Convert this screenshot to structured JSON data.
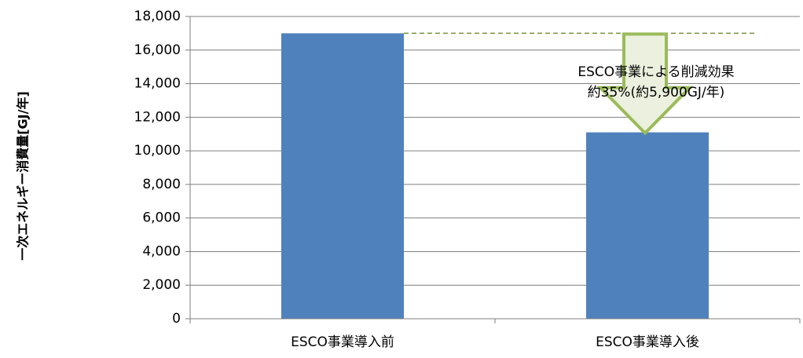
{
  "chart_data": {
    "type": "bar",
    "categories": [
      "ESCO事業導入前",
      "ESCO事業導入後"
    ],
    "values": [
      17000,
      11100
    ],
    "ylabel": "一次エネルギー消費量[GJ/年]",
    "xlabel": "",
    "ylim": [
      0,
      18000
    ],
    "ytick_step": 2000,
    "yticks": [
      "0",
      "2,000",
      "4,000",
      "6,000",
      "8,000",
      "10,000",
      "12,000",
      "14,000",
      "16,000",
      "18,000"
    ],
    "grid": true,
    "legend": "none",
    "reference_line_value": 17000,
    "annotation": {
      "line1": "ESCO事業による削減効果",
      "line2": "約35%(約5,900GJ/年)"
    },
    "colors": {
      "bar": "#4F81BD",
      "grid": "#7F7F7F",
      "axis": "#7F7F7F",
      "reference_line": "#77933C",
      "arrow_fill": "#EBF1DE",
      "arrow_stroke": "#9BBB59"
    }
  }
}
